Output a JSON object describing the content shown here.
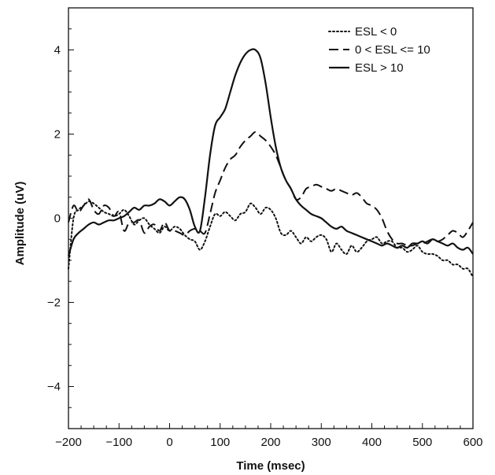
{
  "chart_data": {
    "type": "line",
    "title": "",
    "xlabel": "Time (msec)",
    "ylabel": "Amplitude (uV)",
    "xlim": [
      -200,
      600
    ],
    "ylim": [
      -5,
      5
    ],
    "x_ticks": [
      -200,
      -100,
      0,
      100,
      200,
      300,
      400,
      500,
      600
    ],
    "x_tick_labels": [
      "−200",
      "−100",
      "0",
      "100",
      "200",
      "300",
      "400",
      "500",
      "600"
    ],
    "y_ticks": [
      -4,
      -2,
      0,
      2,
      4
    ],
    "y_tick_labels": [
      "−4",
      "−2",
      "0",
      "2",
      "4"
    ],
    "grid": false,
    "legend_position": "top-right",
    "series": [
      {
        "name": "ESL < 0",
        "style": "dotted",
        "x": [
          -200,
          -190,
          -180,
          -170,
          -160,
          -150,
          -140,
          -130,
          -120,
          -110,
          -100,
          -90,
          -80,
          -70,
          -60,
          -50,
          -40,
          -30,
          -20,
          -10,
          0,
          10,
          20,
          30,
          40,
          50,
          60,
          70,
          80,
          90,
          100,
          110,
          120,
          130,
          140,
          150,
          160,
          170,
          180,
          190,
          200,
          210,
          220,
          230,
          240,
          250,
          260,
          270,
          280,
          290,
          300,
          310,
          320,
          330,
          340,
          350,
          360,
          370,
          380,
          390,
          400,
          410,
          420,
          430,
          440,
          450,
          460,
          470,
          480,
          490,
          500,
          510,
          520,
          530,
          540,
          550,
          560,
          570,
          580,
          590,
          600
        ],
        "y": [
          -1.2,
          0.0,
          0.2,
          0.3,
          0.4,
          0.35,
          0.25,
          0.15,
          0.1,
          0.05,
          0.1,
          0.2,
          0.05,
          -0.15,
          -0.05,
          0.0,
          -0.15,
          -0.25,
          -0.35,
          -0.2,
          -0.3,
          -0.2,
          -0.25,
          -0.4,
          -0.5,
          -0.55,
          -0.75,
          -0.55,
          -0.2,
          0.1,
          0.05,
          0.15,
          0.05,
          -0.05,
          0.1,
          0.15,
          0.35,
          0.25,
          0.1,
          0.25,
          0.2,
          0.0,
          -0.35,
          -0.4,
          -0.3,
          -0.45,
          -0.6,
          -0.45,
          -0.55,
          -0.45,
          -0.4,
          -0.5,
          -0.8,
          -0.6,
          -0.75,
          -0.85,
          -0.65,
          -0.8,
          -0.7,
          -0.55,
          -0.5,
          -0.45,
          -0.6,
          -0.55,
          -0.55,
          -0.7,
          -0.7,
          -0.8,
          -0.75,
          -0.65,
          -0.8,
          -0.85,
          -0.85,
          -0.9,
          -1.0,
          -1.0,
          -1.1,
          -1.1,
          -1.2,
          -1.2,
          -1.4
        ]
      },
      {
        "name": "0 < ESL <= 10",
        "style": "dashed",
        "x": [
          -200,
          -190,
          -180,
          -170,
          -160,
          -150,
          -140,
          -130,
          -120,
          -110,
          -100,
          -90,
          -80,
          -70,
          -60,
          -50,
          -40,
          -30,
          -20,
          -10,
          0,
          10,
          20,
          30,
          40,
          50,
          60,
          70,
          80,
          90,
          100,
          110,
          120,
          130,
          140,
          150,
          160,
          170,
          180,
          190,
          200,
          210,
          220,
          230,
          240,
          250,
          260,
          270,
          280,
          290,
          300,
          310,
          320,
          330,
          340,
          350,
          360,
          370,
          380,
          390,
          400,
          410,
          420,
          430,
          440,
          450,
          460,
          470,
          480,
          490,
          500,
          510,
          520,
          530,
          540,
          550,
          560,
          570,
          580,
          590,
          600
        ],
        "y": [
          -0.1,
          0.3,
          0.15,
          0.3,
          0.45,
          0.2,
          0.1,
          0.3,
          0.25,
          0.05,
          0.15,
          -0.3,
          -0.1,
          -0.1,
          -0.05,
          -0.35,
          -0.2,
          -0.15,
          -0.3,
          -0.1,
          -0.3,
          -0.3,
          -0.35,
          -0.4,
          -0.3,
          -0.25,
          -0.3,
          -0.35,
          0.1,
          0.6,
          0.9,
          1.2,
          1.4,
          1.5,
          1.7,
          1.85,
          1.95,
          2.05,
          1.95,
          1.85,
          1.7,
          1.5,
          1.2,
          0.9,
          0.7,
          0.45,
          0.5,
          0.7,
          0.75,
          0.8,
          0.75,
          0.7,
          0.65,
          0.7,
          0.65,
          0.6,
          0.55,
          0.6,
          0.5,
          0.35,
          0.3,
          0.2,
          0.0,
          -0.3,
          -0.5,
          -0.6,
          -0.6,
          -0.65,
          -0.65,
          -0.6,
          -0.6,
          -0.55,
          -0.5,
          -0.55,
          -0.5,
          -0.4,
          -0.3,
          -0.35,
          -0.45,
          -0.3,
          -0.1
        ]
      },
      {
        "name": "ESL > 10",
        "style": "solid",
        "x": [
          -200,
          -190,
          -180,
          -170,
          -160,
          -150,
          -140,
          -130,
          -120,
          -110,
          -100,
          -90,
          -80,
          -70,
          -60,
          -50,
          -40,
          -30,
          -20,
          -10,
          0,
          10,
          20,
          30,
          40,
          50,
          60,
          70,
          80,
          90,
          100,
          110,
          120,
          130,
          140,
          150,
          160,
          170,
          180,
          190,
          200,
          210,
          220,
          230,
          240,
          250,
          260,
          270,
          280,
          290,
          300,
          310,
          320,
          330,
          340,
          350,
          360,
          370,
          380,
          390,
          400,
          410,
          420,
          430,
          440,
          450,
          460,
          470,
          480,
          490,
          500,
          510,
          520,
          530,
          540,
          550,
          560,
          570,
          580,
          590,
          600
        ],
        "y": [
          -0.9,
          -0.5,
          -0.35,
          -0.25,
          -0.15,
          -0.1,
          -0.15,
          -0.1,
          -0.05,
          -0.05,
          0.0,
          0.05,
          0.15,
          0.25,
          0.2,
          0.3,
          0.3,
          0.35,
          0.45,
          0.4,
          0.3,
          0.4,
          0.5,
          0.45,
          0.2,
          -0.2,
          -0.3,
          0.5,
          1.5,
          2.2,
          2.4,
          2.6,
          3.0,
          3.4,
          3.7,
          3.9,
          4.0,
          4.0,
          3.8,
          3.2,
          2.4,
          1.7,
          1.2,
          0.9,
          0.7,
          0.45,
          0.3,
          0.2,
          0.1,
          0.05,
          0.0,
          -0.1,
          -0.2,
          -0.25,
          -0.2,
          -0.3,
          -0.35,
          -0.4,
          -0.45,
          -0.5,
          -0.55,
          -0.6,
          -0.65,
          -0.6,
          -0.65,
          -0.7,
          -0.65,
          -0.7,
          -0.6,
          -0.6,
          -0.55,
          -0.6,
          -0.5,
          -0.55,
          -0.6,
          -0.65,
          -0.6,
          -0.7,
          -0.75,
          -0.7,
          -0.85
        ]
      }
    ]
  },
  "colors": {
    "lines": "#111111",
    "axes": "#111111",
    "background": "#ffffff"
  }
}
